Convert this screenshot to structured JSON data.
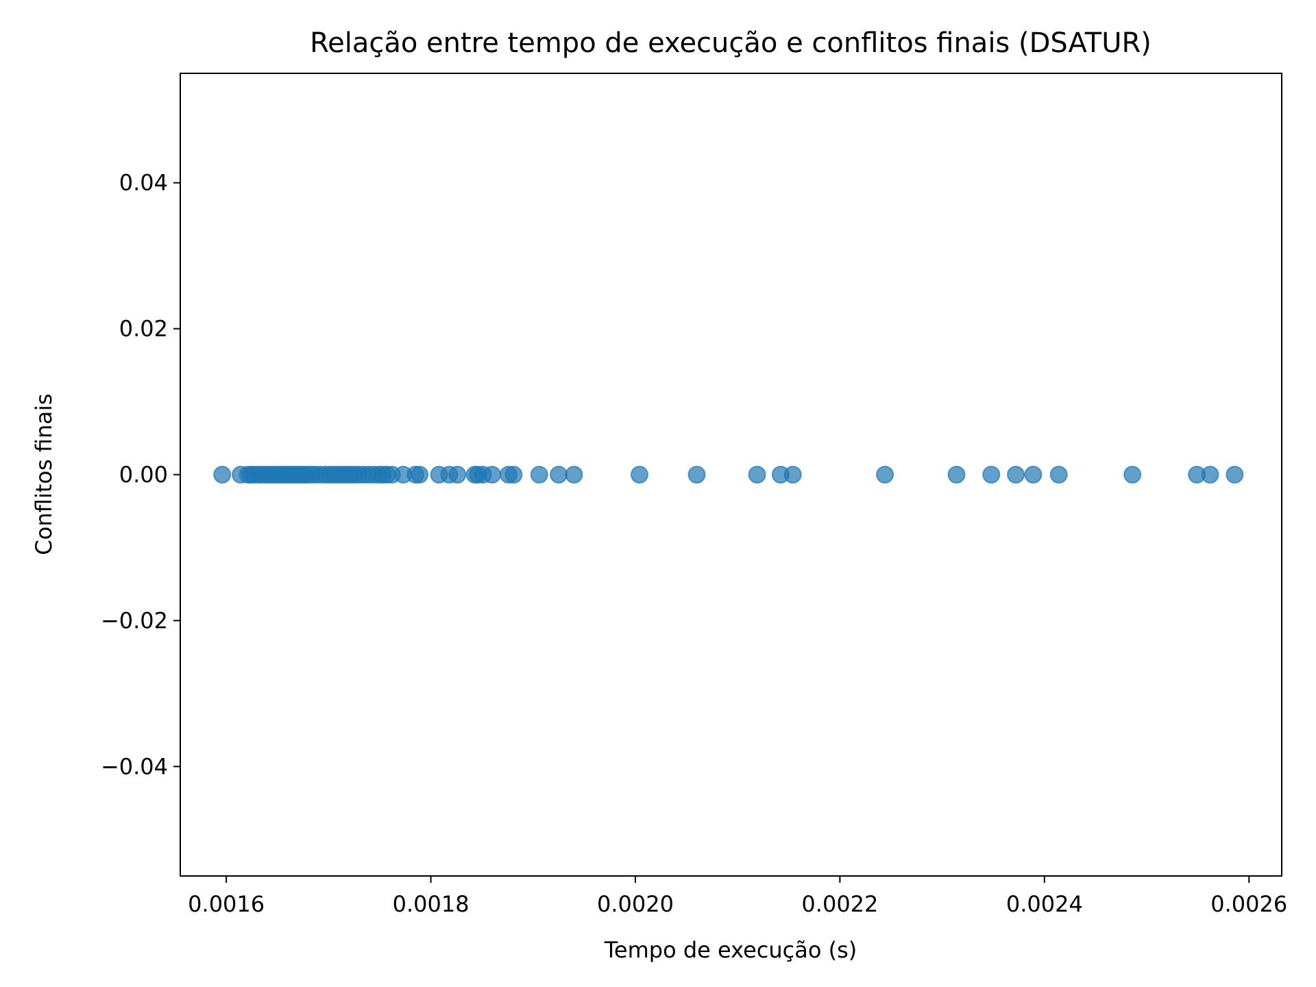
{
  "chart_data": {
    "type": "scatter",
    "title": "Relação entre tempo de execução e conflitos finais (DSATUR)",
    "xlabel": "Tempo de execução (s)",
    "ylabel": "Conflitos finais",
    "xlim": [
      0.001555,
      0.002632
    ],
    "ylim": [
      -0.055,
      0.055
    ],
    "xticks": [
      0.0016,
      0.0018,
      0.002,
      0.0022,
      0.0024,
      0.0026
    ],
    "xtick_labels": [
      "0.0016",
      "0.0018",
      "0.0020",
      "0.0022",
      "0.0024",
      "0.0026"
    ],
    "yticks": [
      -0.04,
      -0.02,
      0.0,
      0.02,
      0.04
    ],
    "ytick_labels": [
      "−0.04",
      "−0.02",
      "0.00",
      "0.02",
      "0.04"
    ],
    "grid": false,
    "marker_color": "#1f77b4",
    "marker_alpha": 0.7,
    "series": [
      {
        "x": [
          0.001596,
          0.001614,
          0.001621,
          0.001624,
          0.001627,
          0.001631,
          0.001634,
          0.001638,
          0.001641,
          0.001645,
          0.001648,
          0.001652,
          0.001655,
          0.001658,
          0.001661,
          0.001664,
          0.001667,
          0.00167,
          0.001673,
          0.001676,
          0.001679,
          0.001683,
          0.001687,
          0.001692,
          0.001697,
          0.001701,
          0.001705,
          0.001709,
          0.001713,
          0.001717,
          0.001721,
          0.001725,
          0.001729,
          0.001734,
          0.001739,
          0.001744,
          0.001749,
          0.001753,
          0.001757,
          0.001762,
          0.001773,
          0.001785,
          0.001789,
          0.001808,
          0.001818,
          0.001826,
          0.001843,
          0.001846,
          0.001851,
          0.00186,
          0.001876,
          0.001881,
          0.001906,
          0.001925,
          0.00194,
          0.002004,
          0.00206,
          0.002119,
          0.002142,
          0.002154,
          0.002244,
          0.002314,
          0.002348,
          0.002372,
          0.002389,
          0.002414,
          0.002486,
          0.002549,
          0.002562,
          0.002586
        ],
        "y": [
          0,
          0,
          0,
          0,
          0,
          0,
          0,
          0,
          0,
          0,
          0,
          0,
          0,
          0,
          0,
          0,
          0,
          0,
          0,
          0,
          0,
          0,
          0,
          0,
          0,
          0,
          0,
          0,
          0,
          0,
          0,
          0,
          0,
          0,
          0,
          0,
          0,
          0,
          0,
          0,
          0,
          0,
          0,
          0,
          0,
          0,
          0,
          0,
          0,
          0,
          0,
          0,
          0,
          0,
          0,
          0,
          0,
          0,
          0,
          0,
          0,
          0,
          0,
          0,
          0,
          0,
          0,
          0,
          0,
          0
        ]
      }
    ]
  }
}
